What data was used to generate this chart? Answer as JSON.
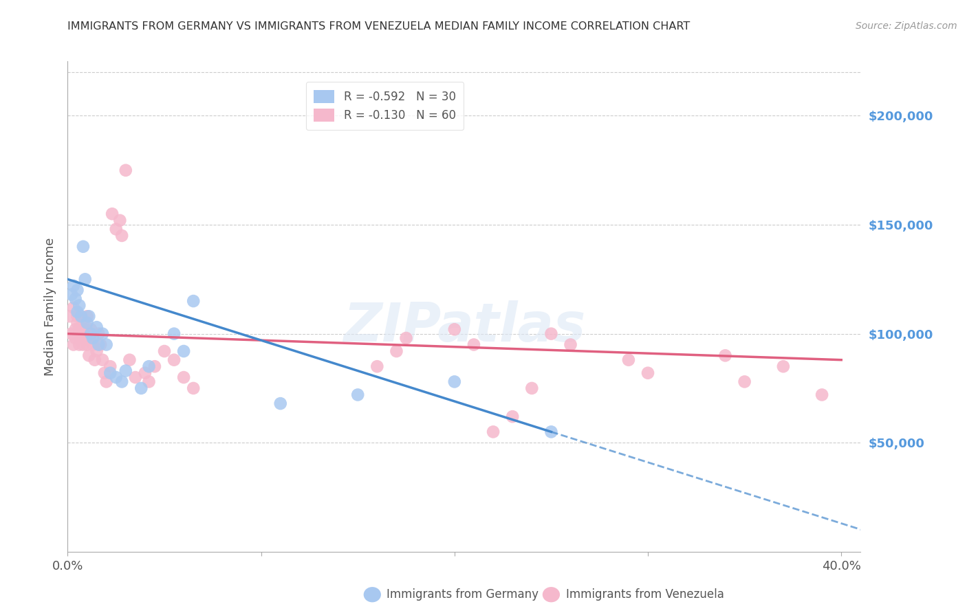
{
  "title": "IMMIGRANTS FROM GERMANY VS IMMIGRANTS FROM VENEZUELA MEDIAN FAMILY INCOME CORRELATION CHART",
  "source": "Source: ZipAtlas.com",
  "ylabel": "Median Family Income",
  "watermark": "ZIPatlas",
  "right_yticks": [
    0,
    50000,
    100000,
    150000,
    200000
  ],
  "right_yticklabels": [
    "",
    "$50,000",
    "$100,000",
    "$150,000",
    "$200,000"
  ],
  "germany_R": "-0.592",
  "germany_N": "30",
  "venezuela_R": "-0.130",
  "venezuela_N": "60",
  "germany_color": "#a8c8f0",
  "venezuela_color": "#f5b8cc",
  "germany_line_color": "#4488cc",
  "venezuela_line_color": "#e06080",
  "germany_scatter_x": [
    0.002,
    0.003,
    0.004,
    0.005,
    0.005,
    0.006,
    0.007,
    0.008,
    0.009,
    0.01,
    0.011,
    0.012,
    0.013,
    0.015,
    0.016,
    0.018,
    0.02,
    0.022,
    0.025,
    0.028,
    0.03,
    0.038,
    0.042,
    0.055,
    0.06,
    0.065,
    0.11,
    0.15,
    0.2,
    0.25
  ],
  "germany_scatter_y": [
    118000,
    122000,
    116000,
    110000,
    120000,
    113000,
    108000,
    140000,
    125000,
    105000,
    108000,
    100000,
    98000,
    103000,
    95000,
    100000,
    95000,
    82000,
    80000,
    78000,
    83000,
    75000,
    85000,
    100000,
    92000,
    115000,
    68000,
    72000,
    78000,
    55000
  ],
  "venezuela_scatter_x": [
    0.001,
    0.002,
    0.003,
    0.003,
    0.004,
    0.004,
    0.005,
    0.005,
    0.006,
    0.006,
    0.007,
    0.007,
    0.008,
    0.008,
    0.009,
    0.009,
    0.01,
    0.01,
    0.011,
    0.011,
    0.012,
    0.013,
    0.014,
    0.015,
    0.016,
    0.017,
    0.018,
    0.019,
    0.02,
    0.022,
    0.023,
    0.025,
    0.027,
    0.028,
    0.03,
    0.032,
    0.035,
    0.04,
    0.042,
    0.045,
    0.05,
    0.055,
    0.06,
    0.065,
    0.16,
    0.17,
    0.175,
    0.2,
    0.21,
    0.22,
    0.23,
    0.24,
    0.25,
    0.26,
    0.29,
    0.3,
    0.34,
    0.35,
    0.37,
    0.39
  ],
  "venezuela_scatter_y": [
    108000,
    100000,
    112000,
    95000,
    98000,
    102000,
    105000,
    108000,
    95000,
    102000,
    100000,
    98000,
    105000,
    95000,
    102000,
    100000,
    108000,
    95000,
    90000,
    98000,
    102000,
    95000,
    88000,
    92000,
    100000,
    95000,
    88000,
    82000,
    78000,
    85000,
    155000,
    148000,
    152000,
    145000,
    175000,
    88000,
    80000,
    82000,
    78000,
    85000,
    92000,
    88000,
    80000,
    75000,
    85000,
    92000,
    98000,
    102000,
    95000,
    55000,
    62000,
    75000,
    100000,
    95000,
    88000,
    82000,
    90000,
    78000,
    85000,
    72000
  ],
  "xlim": [
    0.0,
    0.41
  ],
  "ylim": [
    0,
    225000
  ],
  "background_color": "#ffffff",
  "grid_color": "#cccccc",
  "title_color": "#333333",
  "right_tick_color": "#5599dd"
}
